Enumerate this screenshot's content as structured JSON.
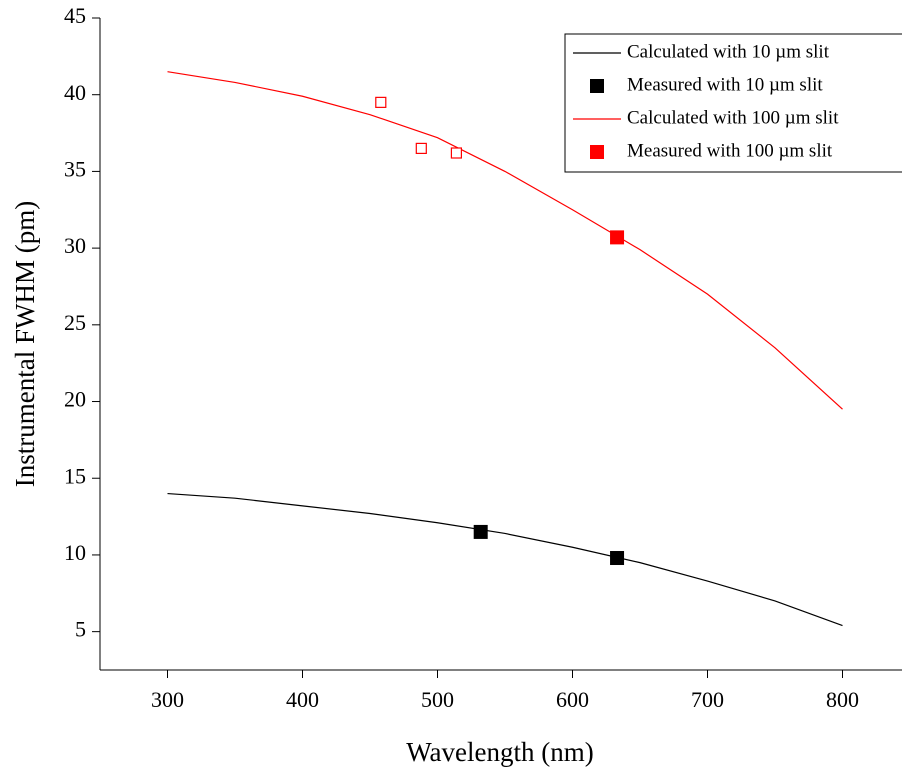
{
  "chart_data": {
    "type": "line",
    "x_label": "Wavelength (nm)",
    "y_label": "Instrumental FWHM (pm)",
    "xlim": [
      250,
      850
    ],
    "xticks": [
      300,
      400,
      500,
      600,
      700,
      800
    ],
    "ylim": [
      2.5,
      45
    ],
    "yticks": [
      5,
      10,
      15,
      20,
      25,
      30,
      35,
      40,
      45
    ],
    "legend": "upper right",
    "series": [
      {
        "name": "Calculated with 10 µm slit",
        "color": "#000000",
        "marker": "line",
        "x": [
          300,
          350,
          400,
          450,
          500,
          550,
          600,
          650,
          700,
          750,
          800
        ],
        "values": [
          14.0,
          13.7,
          13.2,
          12.7,
          12.1,
          11.4,
          10.5,
          9.5,
          8.3,
          7.0,
          5.4
        ]
      },
      {
        "name": "Measured with 10 µm slit",
        "color": "#000000",
        "marker": "square",
        "x": [
          532,
          633
        ],
        "values": [
          11.5,
          9.8
        ]
      },
      {
        "name": "Calculated with 100 µm slit",
        "color": "#ff0000",
        "marker": "line",
        "x": [
          300,
          350,
          400,
          450,
          500,
          550,
          600,
          650,
          700,
          750,
          800
        ],
        "values": [
          41.5,
          40.8,
          39.9,
          38.7,
          37.2,
          35.0,
          32.5,
          29.9,
          27.0,
          23.5,
          19.5
        ]
      },
      {
        "name": "Measured with 100 µm slit",
        "color": "#ff0000",
        "marker": "square",
        "x": [
          633
        ],
        "values": [
          30.7
        ]
      },
      {
        "color": "#ff0000",
        "marker": "open-square",
        "x": [
          458,
          488,
          514
        ],
        "values": [
          39.5,
          36.5,
          36.2
        ]
      }
    ]
  }
}
